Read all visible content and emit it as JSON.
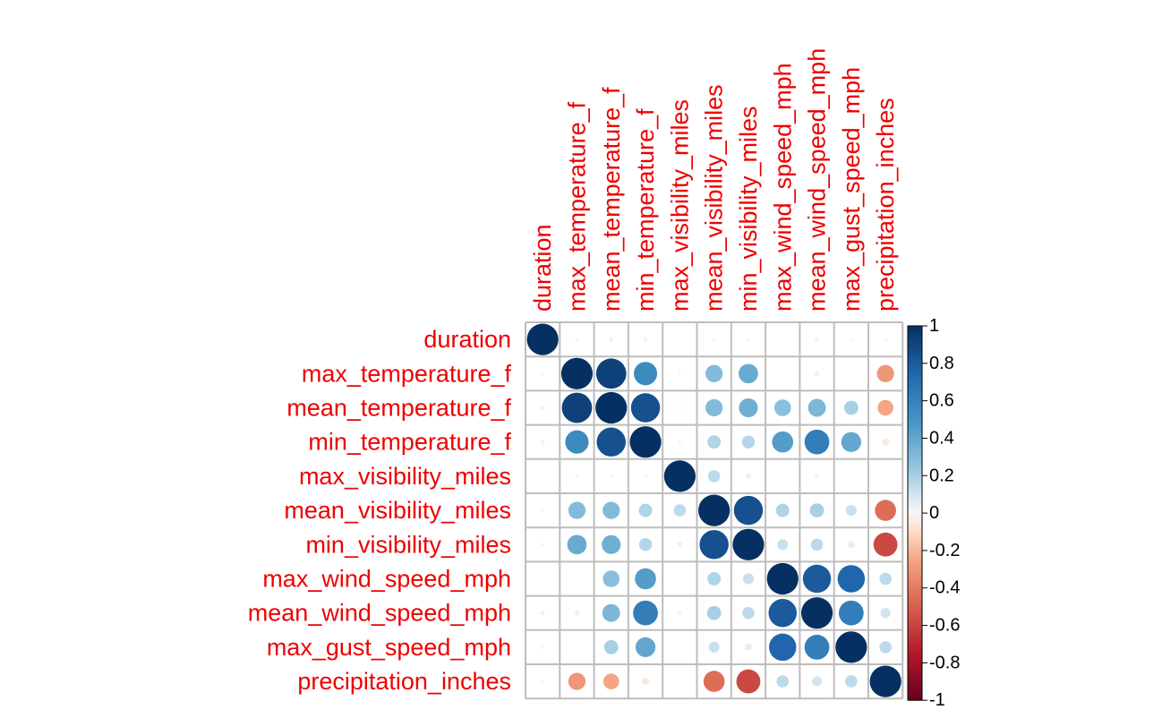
{
  "chart_data": {
    "type": "heatmap",
    "style": "corrplot-circle",
    "title": "",
    "variables": [
      "duration",
      "max_temperature_f",
      "mean_temperature_f",
      "min_temperature_f",
      "max_visibility_miles",
      "mean_visibility_miles",
      "min_visibility_miles",
      "max_wind_speed_mph",
      "mean_wind_speed_mph",
      "max_gust_speed_mph",
      "precipitation_inches"
    ],
    "matrix": [
      [
        1.0,
        0.01,
        0.02,
        0.02,
        0.0,
        0.01,
        0.01,
        0.0,
        0.02,
        0.01,
        -0.01
      ],
      [
        0.01,
        1.0,
        0.92,
        0.55,
        0.01,
        0.3,
        0.38,
        0.0,
        0.03,
        0.0,
        -0.3
      ],
      [
        0.02,
        0.92,
        1.0,
        0.85,
        0.01,
        0.3,
        0.36,
        0.28,
        0.32,
        0.2,
        -0.25
      ],
      [
        0.02,
        0.55,
        0.85,
        1.0,
        0.01,
        0.18,
        0.17,
        0.45,
        0.62,
        0.4,
        -0.05
      ],
      [
        0.0,
        0.01,
        0.01,
        0.01,
        1.0,
        0.15,
        0.03,
        0.0,
        0.02,
        0.0,
        0.0
      ],
      [
        0.01,
        0.3,
        0.3,
        0.18,
        0.15,
        1.0,
        0.85,
        0.18,
        0.2,
        0.12,
        -0.45
      ],
      [
        0.01,
        0.38,
        0.36,
        0.17,
        0.03,
        0.85,
        1.0,
        0.12,
        0.15,
        0.05,
        -0.58
      ],
      [
        0.0,
        0.0,
        0.28,
        0.45,
        0.0,
        0.18,
        0.12,
        1.0,
        0.8,
        0.75,
        0.15
      ],
      [
        0.02,
        0.03,
        0.32,
        0.62,
        0.02,
        0.2,
        0.15,
        0.8,
        1.0,
        0.62,
        0.1
      ],
      [
        0.01,
        0.0,
        0.2,
        0.4,
        0.0,
        0.12,
        0.05,
        0.75,
        0.62,
        1.0,
        0.15
      ],
      [
        -0.01,
        -0.3,
        -0.25,
        -0.05,
        0.0,
        -0.45,
        -0.58,
        0.15,
        0.1,
        0.15,
        1.0
      ]
    ],
    "value_range": [
      -1,
      1
    ],
    "colorbar": {
      "ticks": [
        "1",
        "0.8",
        "0.6",
        "0.4",
        "0.2",
        "0",
        "-0.2",
        "-0.4",
        "-0.6",
        "-0.8",
        "-1"
      ],
      "tick_values": [
        1,
        0.8,
        0.6,
        0.4,
        0.2,
        0,
        -0.2,
        -0.4,
        -0.6,
        -0.8,
        -1
      ],
      "placement": "right"
    },
    "grid": true,
    "label_color": "#ee0000",
    "colors": {
      "negative_end": "#67001f",
      "neutral": "#f7f7f7",
      "positive_end": "#053061"
    }
  }
}
